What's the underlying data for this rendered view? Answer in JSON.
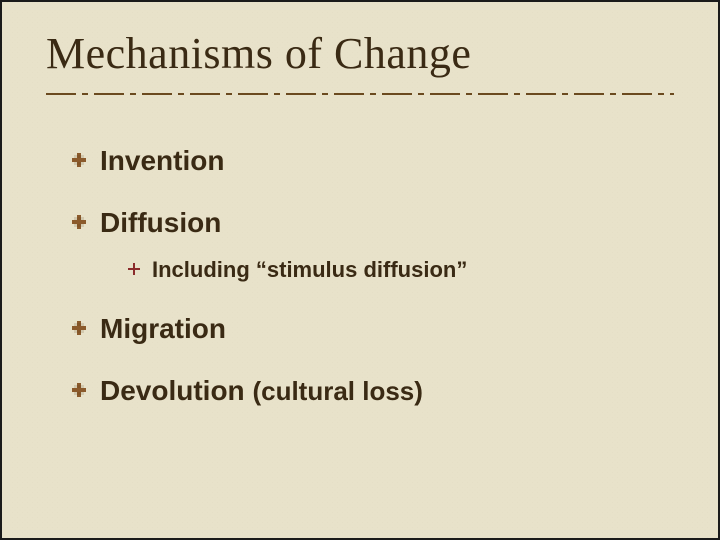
{
  "slide": {
    "title": "Mechanisms of Change",
    "items": [
      {
        "label": "Invention"
      },
      {
        "label": "Diffusion",
        "sub": [
          {
            "label": "Including “stimulus diffusion”"
          }
        ]
      },
      {
        "label": "Migration"
      },
      {
        "label": "Devolution",
        "paren": "(cultural loss)"
      }
    ],
    "colors": {
      "background": "#e8e2ca",
      "text": "#3a2a14",
      "divider": "#6b4a1f",
      "bullet_main": "#8b5a2b",
      "bullet_sub": "#8b2b2b"
    },
    "typography": {
      "title_family": "Georgia",
      "title_size_pt": 33,
      "body_family": "Verdana",
      "item_size_pt": 21,
      "sub_size_pt": 17,
      "weight": "bold"
    }
  }
}
